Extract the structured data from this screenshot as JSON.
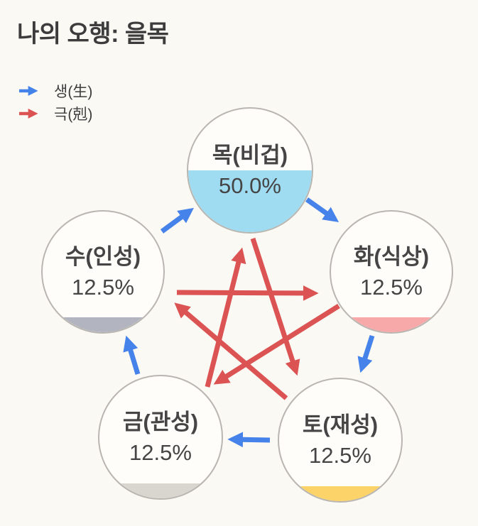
{
  "title": "나의 오행: 을목",
  "legend": [
    {
      "id": "generating",
      "label": "생(生)",
      "arrow_color": "#4583ea"
    },
    {
      "id": "overcoming",
      "label": "극(剋)",
      "arrow_color": "#db5353"
    }
  ],
  "elements": [
    {
      "id": "mok",
      "label": "목(비겁)",
      "percent": "50.0%",
      "value": 50.0,
      "fill_color": "#9fdcf2"
    },
    {
      "id": "hwa",
      "label": "화(식상)",
      "percent": "12.5%",
      "value": 12.5,
      "fill_color": "#f7a8a8"
    },
    {
      "id": "to",
      "label": "토(재성)",
      "percent": "12.5%",
      "value": 12.5,
      "fill_color": "#fbd369"
    },
    {
      "id": "geum",
      "label": "금(관성)",
      "percent": "12.5%",
      "value": 12.5,
      "fill_color": "#d9d6d0"
    },
    {
      "id": "su",
      "label": "수(인성)",
      "percent": "12.5%",
      "value": 12.5,
      "fill_color": "#b2b5bf"
    }
  ],
  "relations": {
    "generating": [
      "수→목",
      "목→화",
      "화→토",
      "토→금",
      "금→수"
    ],
    "overcoming": [
      "목→토",
      "토→수",
      "수→화",
      "화→금",
      "금→목"
    ]
  },
  "colors": {
    "bg": "#fbf9f4",
    "circle_border": "#b9b6b1",
    "circle_bg": "#fffdf9",
    "arrow_blue": "#4583ea",
    "arrow_red": "#db5353",
    "text": "#454545",
    "title": "#3c3c3c"
  }
}
